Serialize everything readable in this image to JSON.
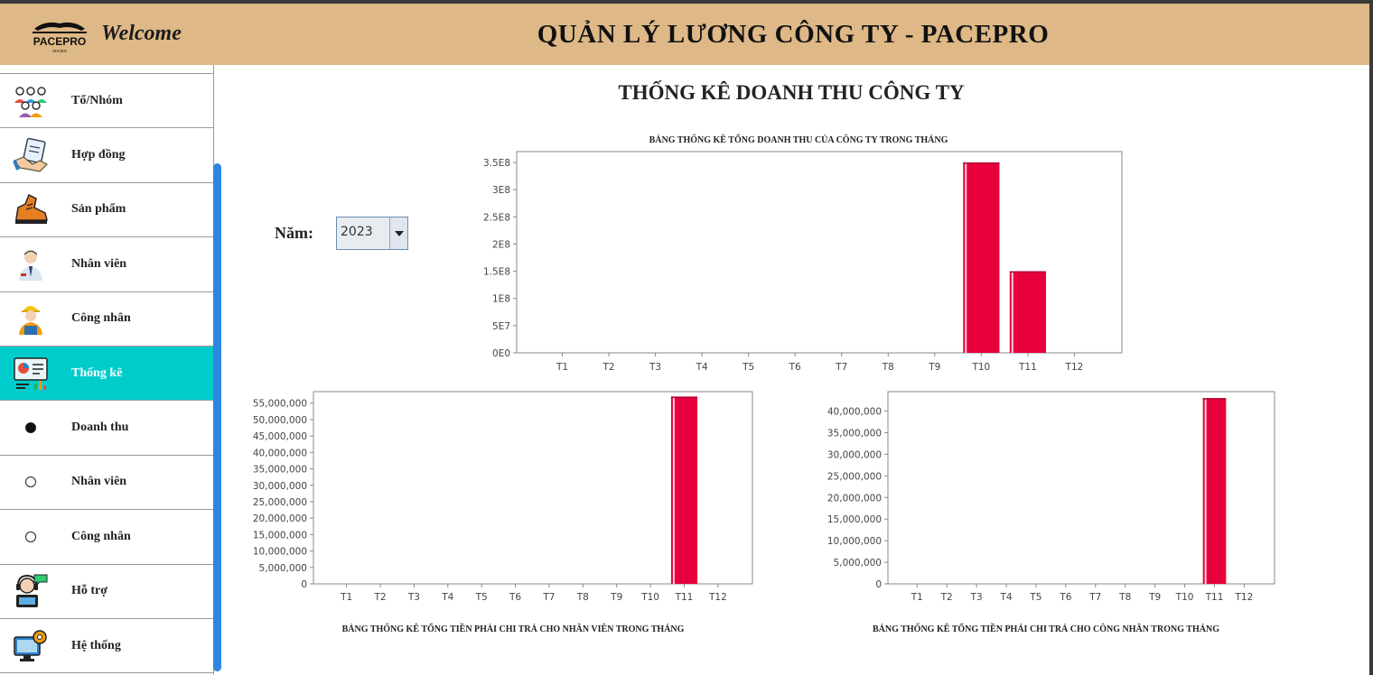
{
  "header": {
    "welcome": "Welcome",
    "title": "QUẢN LÝ LƯƠNG CÔNG TY - PACEPRO",
    "logo_text": "PACEPRO",
    "logo_sub": "SHOES"
  },
  "sidebar": {
    "items": [
      {
        "label": "Tổ/Nhóm",
        "icon": "team-icon"
      },
      {
        "label": "Hợp đồng",
        "icon": "handshake-contract-icon"
      },
      {
        "label": "Sản phẩm",
        "icon": "shoe-icon"
      },
      {
        "label": "Nhân viên",
        "icon": "employee-icon"
      },
      {
        "label": "Công nhân",
        "icon": "worker-icon"
      },
      {
        "label": "Thống kê",
        "icon": "statistics-icon",
        "active": true
      },
      {
        "label": "Doanh thu",
        "icon": "radio",
        "selected": true
      },
      {
        "label": "Nhân viên",
        "icon": "radio",
        "selected": false
      },
      {
        "label": "Công nhân",
        "icon": "radio",
        "selected": false
      },
      {
        "label": "Hỗ trợ",
        "icon": "support-icon"
      },
      {
        "label": "Hệ thống",
        "icon": "system-settings-icon"
      }
    ]
  },
  "main": {
    "title": "THỐNG KÊ DOANH THU CÔNG TY",
    "year_label": "Năm:",
    "year_value": "2023"
  },
  "colors": {
    "header_bg": "#DEB887",
    "active_item": "#00CCCC",
    "bar": "#E8003D",
    "scrollbar": "#2E86DE"
  },
  "chart_data": [
    {
      "type": "bar",
      "title": "BẢNG THỐNG KÊ TỔNG DOANH THU CỦA CÔNG TY TRONG THÁNG",
      "categories": [
        "T1",
        "T2",
        "T3",
        "T4",
        "T5",
        "T6",
        "T7",
        "T8",
        "T9",
        "T10",
        "T11",
        "T12"
      ],
      "values": [
        0,
        0,
        0,
        0,
        0,
        0,
        0,
        0,
        0,
        350000000,
        150000000,
        0
      ],
      "ylim": [
        0,
        370000000
      ],
      "yticks": [
        "0E0",
        "5E7",
        "1E8",
        "1.5E8",
        "2E8",
        "2.5E8",
        "3E8",
        "3.5E8"
      ],
      "ytick_values": [
        0,
        50000000,
        100000000,
        150000000,
        200000000,
        250000000,
        300000000,
        350000000
      ],
      "title_position": "top"
    },
    {
      "type": "bar",
      "title": "BẢNG THỐNG KÊ TỔNG TIỀN PHẢI CHI TRẢ CHO NHÂN VIÊN TRONG THÁNG",
      "categories": [
        "T1",
        "T2",
        "T3",
        "T4",
        "T5",
        "T6",
        "T7",
        "T8",
        "T9",
        "T10",
        "T11",
        "T12"
      ],
      "values": [
        0,
        0,
        0,
        0,
        0,
        0,
        0,
        0,
        0,
        0,
        57000000,
        0
      ],
      "ylim": [
        0,
        58500000
      ],
      "yticks": [
        "0",
        "5,000,000",
        "10,000,000",
        "15,000,000",
        "20,000,000",
        "25,000,000",
        "30,000,000",
        "35,000,000",
        "40,000,000",
        "45,000,000",
        "50,000,000",
        "55,000,000"
      ],
      "ytick_values": [
        0,
        5000000,
        10000000,
        15000000,
        20000000,
        25000000,
        30000000,
        35000000,
        40000000,
        45000000,
        50000000,
        55000000
      ],
      "title_position": "bottom"
    },
    {
      "type": "bar",
      "title": "BẢNG THỐNG KÊ TỔNG TIỀN PHẢI CHI TRẢ CHO CÔNG NHÂN TRONG THÁNG",
      "categories": [
        "T1",
        "T2",
        "T3",
        "T4",
        "T5",
        "T6",
        "T7",
        "T8",
        "T9",
        "T10",
        "T11",
        "T12"
      ],
      "values": [
        0,
        0,
        0,
        0,
        0,
        0,
        0,
        0,
        0,
        0,
        43000000,
        0
      ],
      "ylim": [
        0,
        44500000
      ],
      "yticks": [
        "0",
        "5,000,000",
        "10,000,000",
        "15,000,000",
        "20,000,000",
        "25,000,000",
        "30,000,000",
        "35,000,000",
        "40,000,000"
      ],
      "ytick_values": [
        0,
        5000000,
        10000000,
        15000000,
        20000000,
        25000000,
        30000000,
        35000000,
        40000000
      ],
      "title_position": "bottom"
    }
  ]
}
